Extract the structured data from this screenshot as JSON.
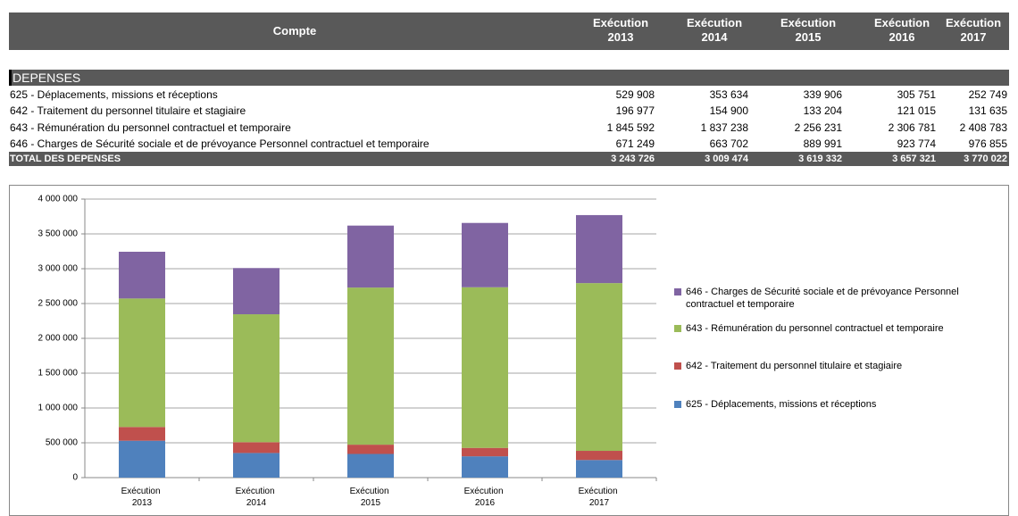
{
  "table": {
    "header": [
      "Compte",
      "Exécution 2013",
      "Exécution 2014",
      "Exécution 2015",
      "Exécution 2016",
      "Exécution 2017"
    ],
    "section": "DEPENSES",
    "rows": [
      [
        "625 - Déplacements, missions et réceptions",
        "529 908",
        "353 634",
        "339 906",
        "305 751",
        "252 749"
      ],
      [
        "642 - Traitement du personnel titulaire et stagiaire",
        "196 977",
        "154 900",
        "133 204",
        "121 015",
        "131 635"
      ],
      [
        "643 - Rémunération du personnel contractuel et temporaire",
        "1 845 592",
        "1 837 238",
        "2 256 231",
        "2 306 781",
        "2 408 783"
      ],
      [
        "646 - Charges de Sécurité sociale et de prévoyance Personnel contractuel et temporaire",
        "671 249",
        "663 702",
        "889 991",
        "923 774",
        "976 855"
      ]
    ],
    "total": [
      "TOTAL DES DEPENSES",
      "3 243 726",
      "3 009 474",
      "3 619 332",
      "3 657 321",
      "3 770 022"
    ]
  },
  "chart_data": {
    "type": "stacked_bar",
    "categories": [
      "Exécution 2013",
      "Exécution 2014",
      "Exécution 2015",
      "Exécution 2016",
      "Exécution 2017"
    ],
    "series": [
      {
        "name": "625 - Déplacements, missions et réceptions",
        "color": "#4f81bd",
        "values": [
          529908,
          353634,
          339906,
          305751,
          252749
        ]
      },
      {
        "name": "642 - Traitement du personnel titulaire et stagiaire",
        "color": "#c0504d",
        "values": [
          196977,
          154900,
          133204,
          121015,
          131635
        ]
      },
      {
        "name": "643 - Rémunération du personnel contractuel et temporaire",
        "color": "#9bbb59",
        "values": [
          1845592,
          1837238,
          2256231,
          2306781,
          2408783
        ]
      },
      {
        "name": "646 - Charges de Sécurité sociale et de prévoyance Personnel contractuel et temporaire",
        "color": "#8064a2",
        "values": [
          671249,
          663702,
          889991,
          923774,
          976855
        ]
      }
    ],
    "ylim": [
      0,
      4000000
    ],
    "yticks": [
      0,
      {
        "value": 500000,
        "label": "500 000"
      },
      {
        "value": 1000000,
        "label": "1 000 000"
      },
      {
        "value": 1500000,
        "label": "1 500 000"
      },
      {
        "value": 2000000,
        "label": "2 000 000"
      },
      {
        "value": 2500000,
        "label": "2 500 000"
      },
      {
        "value": 3000000,
        "label": "3 000 000"
      },
      {
        "value": 3500000,
        "label": "3 500 000"
      },
      {
        "value": 4000000,
        "label": "4 000 000"
      }
    ],
    "grid": true
  }
}
